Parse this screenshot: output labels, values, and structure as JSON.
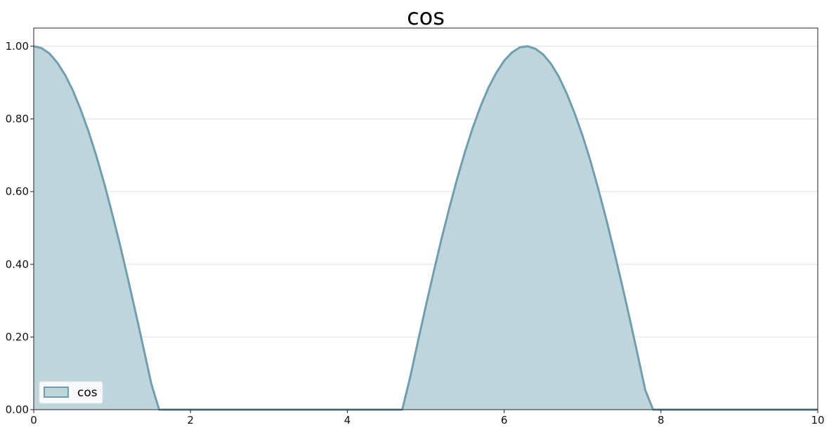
{
  "chart_data": {
    "type": "area",
    "title": "cos",
    "xlabel": "",
    "ylabel": "",
    "xlim": [
      0,
      10
    ],
    "ylim": [
      0,
      1.05
    ],
    "x_ticks": [
      0,
      2,
      4,
      6,
      8,
      10
    ],
    "x_tick_labels": [
      "0",
      "2",
      "4",
      "6",
      "8",
      "10"
    ],
    "y_ticks": [
      0,
      0.2,
      0.4,
      0.6,
      0.8,
      1.0
    ],
    "y_tick_labels": [
      "0.00",
      "0.20",
      "0.40",
      "0.60",
      "0.80",
      "1.00"
    ],
    "grid": "horizontal",
    "legend_position": "bottom-left",
    "series": [
      {
        "name": "cos",
        "line_color": "#6f9fae",
        "fill_color": "#bfd5dc",
        "x": [
          0,
          0.1,
          0.2,
          0.3,
          0.4,
          0.5,
          0.6,
          0.7,
          0.8,
          0.9,
          1.0,
          1.1,
          1.2,
          1.3,
          1.4,
          1.5,
          1.6,
          1.7,
          2,
          3,
          4,
          4.6,
          4.7,
          4.8,
          4.9,
          5.0,
          5.1,
          5.2,
          5.3,
          5.4,
          5.5,
          5.6,
          5.7,
          5.8,
          5.9,
          6.0,
          6.1,
          6.2,
          6.3,
          6.4,
          6.5,
          6.6,
          6.7,
          6.8,
          6.9,
          7.0,
          7.1,
          7.2,
          7.3,
          7.4,
          7.5,
          7.6,
          7.7,
          7.8,
          7.9,
          8,
          9,
          10
        ],
        "y": [
          1.0,
          0.995,
          0.98,
          0.955,
          0.921,
          0.878,
          0.825,
          0.765,
          0.697,
          0.622,
          0.54,
          0.454,
          0.362,
          0.267,
          0.17,
          0.071,
          0.0,
          0.0,
          0.0,
          0.0,
          0.0,
          0.0,
          0.0,
          0.088,
          0.187,
          0.284,
          0.378,
          0.469,
          0.554,
          0.635,
          0.709,
          0.776,
          0.835,
          0.886,
          0.927,
          0.96,
          0.983,
          0.997,
          1.0,
          0.993,
          0.977,
          0.951,
          0.915,
          0.869,
          0.815,
          0.754,
          0.685,
          0.608,
          0.526,
          0.438,
          0.347,
          0.252,
          0.154,
          0.054,
          0.0,
          0.0,
          0.0,
          0.0
        ]
      }
    ]
  }
}
